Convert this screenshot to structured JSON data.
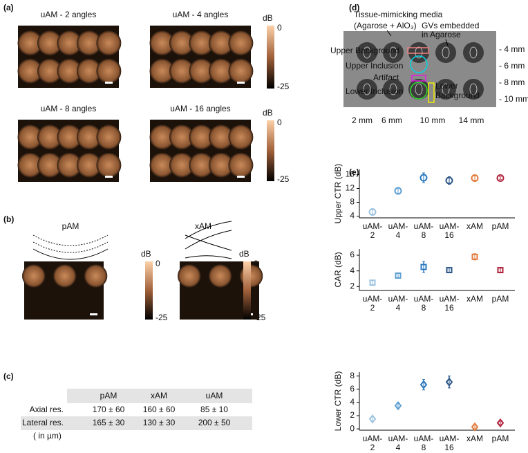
{
  "panel_a": {
    "label": "(a)",
    "images": [
      {
        "title": "uAM - 2 angles"
      },
      {
        "title": "uAM - 4 angles"
      },
      {
        "title": "uAM - 8 angles"
      },
      {
        "title": "uAM - 16 angles"
      }
    ],
    "colorbars": [
      {
        "unit": "dB",
        "max": 0,
        "min": -25
      },
      {
        "unit": "dB",
        "max": 0,
        "min": -25
      }
    ]
  },
  "panel_b": {
    "label": "(b)",
    "images": [
      {
        "title": "pAM"
      },
      {
        "title": "xAM"
      }
    ],
    "colorbars": [
      {
        "unit": "dB",
        "max": 0,
        "min": -25
      },
      {
        "unit": "dB",
        "max": 0,
        "min": -25
      }
    ]
  },
  "panel_c": {
    "label": "(c)",
    "header": [
      "pAM",
      "xAM",
      "uAM"
    ],
    "rows": [
      [
        "Axial res.",
        "170 ± 60",
        "160 ± 60",
        "85 ± 10"
      ],
      [
        "Lateral res.",
        "165 ± 30",
        "130 ± 30",
        "200 ± 50"
      ]
    ],
    "note": "( in µm)"
  },
  "panel_d": {
    "label": "(d)",
    "media": [
      "Tissue-mimicking media",
      "(Agarose + AlO₃)"
    ],
    "gvs": [
      "GVs embedded",
      "in Agarose"
    ],
    "regions": [
      {
        "text": "Upper Background",
        "color": "#f08080"
      },
      {
        "text": "Upper Inclusion",
        "color": "#00d8e8"
      },
      {
        "text": "Artifact",
        "color": "#e020e0"
      },
      {
        "text": "Lower Inclusion",
        "color": "#30e030"
      },
      {
        "text": "Lower",
        "color": "#f0f000"
      },
      {
        "text": "Background",
        "color": "#f0f000"
      }
    ],
    "depth_ticks": [
      "- 4 mm",
      "- 6 mm",
      "- 8 mm",
      "- 10 mm"
    ],
    "lateral_ticks": [
      "2 mm",
      "6 mm",
      "10 mm",
      "14 mm"
    ]
  },
  "panel_e": {
    "label": "(e)"
  },
  "chart_data": [
    {
      "type": "errorbar",
      "ylabel": "Upper CTR (dB)",
      "marker": "circle",
      "categories": [
        "uAM-2",
        "uAM-4",
        "uAM-8",
        "uAM-16",
        "xAM",
        "pAM"
      ],
      "values": [
        5.2,
        11.3,
        15.1,
        14.3,
        15.0,
        15.0
      ],
      "errors": [
        0.6,
        1.0,
        1.4,
        1.1,
        0.6,
        0.4
      ],
      "colors": [
        "#9cc3e0",
        "#5e9fd0",
        "#2a78bf",
        "#2a5688",
        "#e07b3a",
        "#b0213a"
      ],
      "ylim": [
        3.5,
        17.5
      ],
      "yticks": [
        4,
        8,
        12,
        16
      ]
    },
    {
      "type": "errorbar",
      "ylabel": "CAR (dB)",
      "marker": "square",
      "categories": [
        "uAM-2",
        "uAM-4",
        "uAM-8",
        "uAM-16",
        "xAM",
        "pAM"
      ],
      "values": [
        2.5,
        3.4,
        4.5,
        4.1,
        5.8,
        4.1
      ],
      "errors": [
        0.25,
        0.3,
        0.7,
        0.3,
        0.4,
        0.25
      ],
      "colors": [
        "#9cc3e0",
        "#5e9fd0",
        "#2a78bf",
        "#2a5688",
        "#e07b3a",
        "#b0213a"
      ],
      "ylim": [
        1.5,
        6.8
      ],
      "yticks": [
        2,
        4,
        6
      ]
    },
    {
      "type": "errorbar",
      "ylabel": "Lower CTR (dB)",
      "marker": "diamond",
      "categories": [
        "uAM-2",
        "uAM-4",
        "uAM-8",
        "uAM-16",
        "xAM",
        "pAM"
      ],
      "values": [
        1.5,
        3.5,
        6.7,
        7.1,
        0.3,
        0.9
      ],
      "errors": [
        0.4,
        0.5,
        0.8,
        0.9,
        0.2,
        0.2
      ],
      "colors": [
        "#9cc3e0",
        "#5e9fd0",
        "#2a78bf",
        "#2a5688",
        "#e07b3a",
        "#b0213a"
      ],
      "ylim": [
        -0.2,
        8.6
      ],
      "yticks": [
        0,
        2,
        4,
        6,
        8
      ]
    }
  ]
}
